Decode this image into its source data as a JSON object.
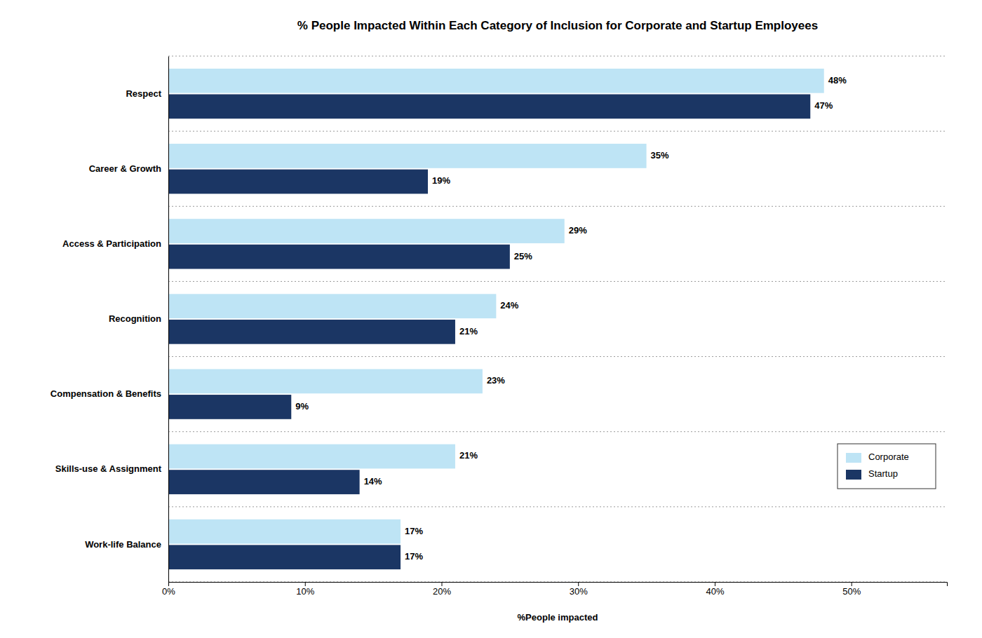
{
  "chart_data": {
    "type": "bar",
    "orientation": "horizontal",
    "title": "% People Impacted Within Each Category of Inclusion for Corporate and Startup Employees",
    "categories": [
      "Respect",
      "Career & Growth",
      "Access & Participation",
      "Recognition",
      "Compensation & Benefits",
      "Skills-use & Assignment",
      "Work-life Balance"
    ],
    "series": [
      {
        "name": "Corporate",
        "color": "#BEE4F5",
        "values": [
          48,
          35,
          29,
          24,
          23,
          21,
          17
        ],
        "value_labels": [
          "48%",
          "35%",
          "29%",
          "24%",
          "23%",
          "21%",
          "17%"
        ]
      },
      {
        "name": "Startup",
        "color": "#1B3664",
        "values": [
          47,
          19,
          25,
          21,
          9,
          14,
          17
        ],
        "value_labels": [
          "47%",
          "19%",
          "25%",
          "21%",
          "9%",
          "14%",
          "17%"
        ]
      }
    ],
    "xlabel": "%People impacted",
    "xlim": [
      0,
      57
    ],
    "xticks": [
      {
        "value": 0,
        "label": "0%"
      },
      {
        "value": 10,
        "label": "10%"
      },
      {
        "value": 20,
        "label": "20%"
      },
      {
        "value": 30,
        "label": "30%"
      },
      {
        "value": 40,
        "label": "40%"
      },
      {
        "value": 50,
        "label": "50%"
      }
    ],
    "grid": false,
    "legend": "lower right",
    "data_labels": true
  }
}
